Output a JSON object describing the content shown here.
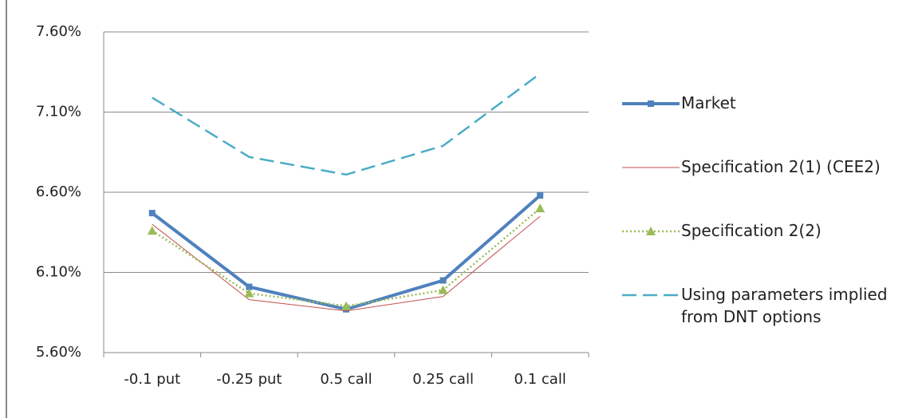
{
  "chart_data": {
    "type": "line",
    "categories": [
      "-0.1 put",
      "-0.25 put",
      "0.5 call",
      "0.25 call",
      "0.1 call"
    ],
    "ylim": [
      5.6,
      7.6
    ],
    "yticks": [
      {
        "value": 5.6,
        "label": "5.60%"
      },
      {
        "value": 6.1,
        "label": "6.10%"
      },
      {
        "value": 6.6,
        "label": "6.60%"
      },
      {
        "value": 7.1,
        "label": "7.10%"
      },
      {
        "value": 7.6,
        "label": "7.60%"
      }
    ],
    "grid": true,
    "legend": "right",
    "series": [
      {
        "name": "Market",
        "color": "#4f81bd",
        "style": "solid",
        "marker": "square",
        "values": [
          6.47,
          6.01,
          5.87,
          6.05,
          6.58
        ]
      },
      {
        "name": "Specification 2(1) (CEE2)",
        "color": "#c0504d",
        "style": "thin",
        "marker": "none",
        "values": [
          6.4,
          5.93,
          5.86,
          5.95,
          6.45
        ]
      },
      {
        "name": "Specification 2(2)",
        "color": "#9bbb59",
        "style": "dotted",
        "marker": "triangle",
        "values": [
          6.36,
          5.97,
          5.89,
          5.99,
          6.5
        ]
      },
      {
        "name": "Using parameters implied from DNT options",
        "color": "#4bacc6",
        "style": "dashed",
        "marker": "none",
        "values": [
          7.19,
          6.82,
          6.71,
          6.89,
          7.34
        ]
      }
    ]
  }
}
